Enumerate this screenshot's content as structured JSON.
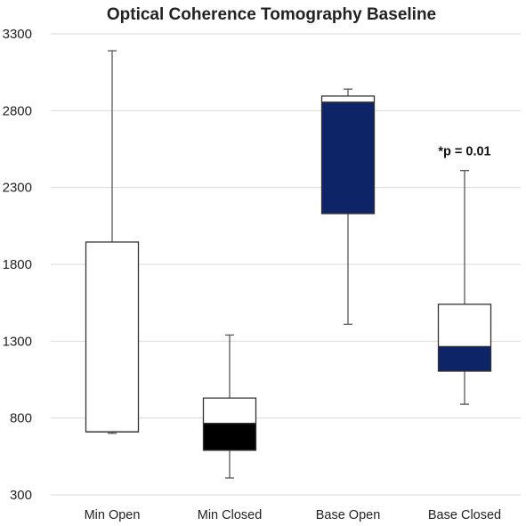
{
  "chart_data": {
    "type": "boxplot",
    "title": "Optical Coherence Tomography Baseline",
    "categories": [
      "Min Open",
      "Min Closed",
      "Base Open",
      "Base Closed"
    ],
    "ylim": [
      300,
      3300
    ],
    "yticks": [
      300,
      800,
      1300,
      1800,
      2300,
      2800,
      3300
    ],
    "grid": true,
    "boxes": [
      {
        "category": "Min Open",
        "min": 700,
        "q1": 710,
        "median": 710,
        "q3": 1945,
        "max": 3190,
        "color": "#000000"
      },
      {
        "category": "Min Closed",
        "min": 410,
        "q1": 590,
        "median": 765,
        "q3": 930,
        "max": 1340,
        "color": "#000000"
      },
      {
        "category": "Base Open",
        "min": 1410,
        "q1": 2130,
        "median": 2855,
        "q3": 2895,
        "max": 2940,
        "color": "#0d2466"
      },
      {
        "category": "Base Closed",
        "min": 890,
        "q1": 1105,
        "median": 1265,
        "q3": 1540,
        "max": 2410,
        "color": "#0d2466"
      }
    ],
    "annotations": [
      {
        "text": "*p = 0.01",
        "category": "Base Closed",
        "y": 2510
      }
    ]
  }
}
